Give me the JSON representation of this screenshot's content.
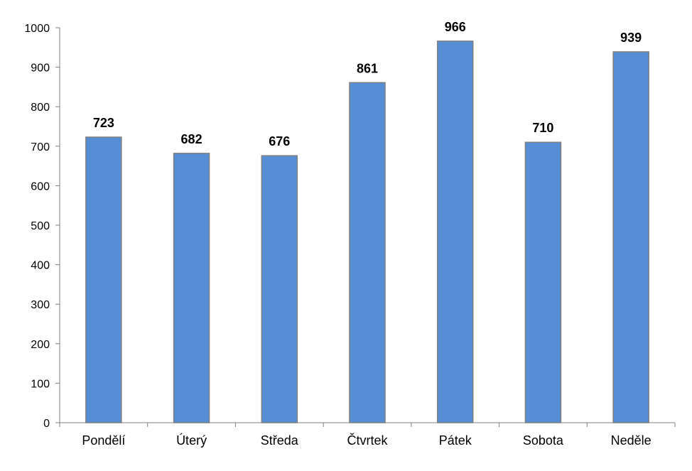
{
  "chart_data": {
    "type": "bar",
    "categories": [
      "Pondělí",
      "Úterý",
      "Středa",
      "Čtvrtek",
      "Pátek",
      "Sobota",
      "Neděle"
    ],
    "series": [
      {
        "values": [
          723,
          682,
          676,
          861,
          966,
          710,
          939
        ]
      }
    ],
    "ylim": [
      0,
      1000
    ],
    "yticks": [
      0,
      100,
      200,
      300,
      400,
      500,
      600,
      700,
      800,
      900,
      1000
    ],
    "grid": false,
    "legend": "none",
    "data_labels": true,
    "colors": {
      "bar_fill": "#558ed5",
      "bar_stroke": "#7f7f7f"
    }
  }
}
